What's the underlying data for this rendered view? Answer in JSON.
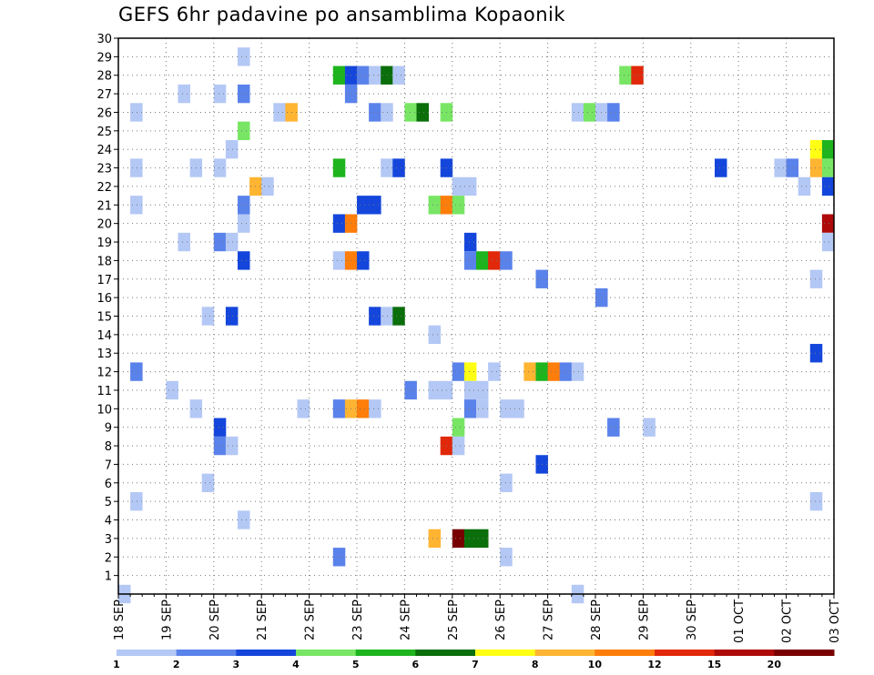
{
  "chart_data": {
    "type": "heatmap",
    "title": "GEFS 6hr padavine po ansamblima Kopaonik",
    "xlabel": "",
    "ylabel": "",
    "x_ticks": [
      "18 SEP",
      "19 SEP",
      "20 SEP",
      "21 SEP",
      "22 SEP",
      "23 SEP",
      "24 SEP",
      "25 SEP",
      "26 SEP",
      "27 SEP",
      "28 SEP",
      "29 SEP",
      "30 SEP",
      "01 OCT",
      "02 OCT",
      "03 OCT"
    ],
    "xlim_days": [
      0,
      15
    ],
    "steps_per_day": 4,
    "y_ticks": [
      1,
      2,
      3,
      4,
      5,
      6,
      7,
      8,
      9,
      10,
      11,
      12,
      13,
      14,
      15,
      16,
      17,
      18,
      19,
      20,
      21,
      22,
      23,
      24,
      25,
      26,
      27,
      28,
      29,
      30
    ],
    "ylim": [
      0,
      30
    ],
    "grid": true,
    "colorbar": {
      "labels": [
        "1",
        "2",
        "3",
        "4",
        "5",
        "6",
        "7",
        "8",
        "10",
        "12",
        "15",
        "20"
      ],
      "colors": [
        "#b4c8f5",
        "#5a82eb",
        "#1446dc",
        "#78e664",
        "#1eb41e",
        "#0a6e0a",
        "#ffff14",
        "#ffb432",
        "#ff7d0a",
        "#e1280a",
        "#af0a0a",
        "#780000"
      ]
    },
    "cells": [
      {
        "x": 0.0,
        "y": 0,
        "c": 0
      },
      {
        "x": 9.5,
        "y": 0,
        "c": 0
      },
      {
        "x": 0.25,
        "y": 21,
        "c": 0
      },
      {
        "x": 0.25,
        "y": 26,
        "c": 0
      },
      {
        "x": 0.25,
        "y": 23,
        "c": 0
      },
      {
        "x": 0.25,
        "y": 5,
        "c": 0
      },
      {
        "x": 0.25,
        "y": 12,
        "c": 1
      },
      {
        "x": 1.0,
        "y": 11,
        "c": 0
      },
      {
        "x": 1.25,
        "y": 27,
        "c": 0
      },
      {
        "x": 1.25,
        "y": 19,
        "c": 0
      },
      {
        "x": 1.5,
        "y": 23,
        "c": 0
      },
      {
        "x": 1.5,
        "y": 10,
        "c": 0
      },
      {
        "x": 1.75,
        "y": 15,
        "c": 0
      },
      {
        "x": 1.75,
        "y": 6,
        "c": 0
      },
      {
        "x": 2.0,
        "y": 27,
        "c": 0
      },
      {
        "x": 2.0,
        "y": 23,
        "c": 0
      },
      {
        "x": 2.0,
        "y": 19,
        "c": 1
      },
      {
        "x": 2.0,
        "y": 9,
        "c": 2
      },
      {
        "x": 2.0,
        "y": 8,
        "c": 1
      },
      {
        "x": 2.25,
        "y": 24,
        "c": 0
      },
      {
        "x": 2.25,
        "y": 19,
        "c": 0
      },
      {
        "x": 2.25,
        "y": 15,
        "c": 2
      },
      {
        "x": 2.25,
        "y": 8,
        "c": 0
      },
      {
        "x": 2.5,
        "y": 29,
        "c": 0
      },
      {
        "x": 2.5,
        "y": 27,
        "c": 1
      },
      {
        "x": 2.5,
        "y": 25,
        "c": 3
      },
      {
        "x": 2.5,
        "y": 21,
        "c": 1
      },
      {
        "x": 2.5,
        "y": 20,
        "c": 0
      },
      {
        "x": 2.5,
        "y": 18,
        "c": 2
      },
      {
        "x": 2.5,
        "y": 4,
        "c": 0
      },
      {
        "x": 2.75,
        "y": 22,
        "c": 7
      },
      {
        "x": 3.0,
        "y": 22,
        "c": 0
      },
      {
        "x": 3.25,
        "y": 26,
        "c": 0
      },
      {
        "x": 3.5,
        "y": 26,
        "c": 7
      },
      {
        "x": 3.75,
        "y": 10,
        "c": 0
      },
      {
        "x": 4.5,
        "y": 28,
        "c": 4
      },
      {
        "x": 4.5,
        "y": 23,
        "c": 4
      },
      {
        "x": 4.5,
        "y": 20,
        "c": 2
      },
      {
        "x": 4.5,
        "y": 18,
        "c": 0
      },
      {
        "x": 4.5,
        "y": 10,
        "c": 1
      },
      {
        "x": 4.5,
        "y": 2,
        "c": 1
      },
      {
        "x": 4.75,
        "y": 28,
        "c": 2
      },
      {
        "x": 4.75,
        "y": 27,
        "c": 1
      },
      {
        "x": 4.75,
        "y": 20,
        "c": 8
      },
      {
        "x": 4.75,
        "y": 18,
        "c": 8
      },
      {
        "x": 4.75,
        "y": 10,
        "c": 7
      },
      {
        "x": 5.0,
        "y": 28,
        "c": 1
      },
      {
        "x": 5.0,
        "y": 21,
        "c": 2
      },
      {
        "x": 5.0,
        "y": 18,
        "c": 2
      },
      {
        "x": 5.0,
        "y": 10,
        "c": 8
      },
      {
        "x": 5.25,
        "y": 28,
        "c": 0
      },
      {
        "x": 5.25,
        "y": 26,
        "c": 1
      },
      {
        "x": 5.25,
        "y": 21,
        "c": 2
      },
      {
        "x": 5.25,
        "y": 15,
        "c": 2
      },
      {
        "x": 5.25,
        "y": 10,
        "c": 0
      },
      {
        "x": 5.5,
        "y": 28,
        "c": 5
      },
      {
        "x": 5.5,
        "y": 26,
        "c": 0
      },
      {
        "x": 5.5,
        "y": 23,
        "c": 0
      },
      {
        "x": 5.5,
        "y": 15,
        "c": 0
      },
      {
        "x": 5.75,
        "y": 28,
        "c": 0
      },
      {
        "x": 5.75,
        "y": 23,
        "c": 2
      },
      {
        "x": 5.75,
        "y": 15,
        "c": 5
      },
      {
        "x": 6.0,
        "y": 26,
        "c": 3
      },
      {
        "x": 6.0,
        "y": 11,
        "c": 1
      },
      {
        "x": 6.25,
        "y": 26,
        "c": 5
      },
      {
        "x": 6.5,
        "y": 14,
        "c": 0
      },
      {
        "x": 6.5,
        "y": 11,
        "c": 0
      },
      {
        "x": 6.5,
        "y": 21,
        "c": 3
      },
      {
        "x": 6.5,
        "y": 3,
        "c": 7
      },
      {
        "x": 6.75,
        "y": 26,
        "c": 3
      },
      {
        "x": 6.75,
        "y": 23,
        "c": 2
      },
      {
        "x": 6.75,
        "y": 21,
        "c": 8
      },
      {
        "x": 6.75,
        "y": 11,
        "c": 0
      },
      {
        "x": 6.75,
        "y": 8,
        "c": 9
      },
      {
        "x": 7.0,
        "y": 22,
        "c": 0
      },
      {
        "x": 7.0,
        "y": 21,
        "c": 3
      },
      {
        "x": 7.0,
        "y": 12,
        "c": 1
      },
      {
        "x": 7.0,
        "y": 9,
        "c": 3
      },
      {
        "x": 7.0,
        "y": 8,
        "c": 0
      },
      {
        "x": 7.0,
        "y": 3,
        "c": 11
      },
      {
        "x": 7.25,
        "y": 22,
        "c": 0
      },
      {
        "x": 7.25,
        "y": 19,
        "c": 2
      },
      {
        "x": 7.25,
        "y": 18,
        "c": 1
      },
      {
        "x": 7.25,
        "y": 12,
        "c": 6
      },
      {
        "x": 7.25,
        "y": 11,
        "c": 0
      },
      {
        "x": 7.25,
        "y": 10,
        "c": 1
      },
      {
        "x": 7.25,
        "y": 3,
        "c": 5
      },
      {
        "x": 7.5,
        "y": 18,
        "c": 4
      },
      {
        "x": 7.5,
        "y": 11,
        "c": 0
      },
      {
        "x": 7.5,
        "y": 10,
        "c": 0
      },
      {
        "x": 7.5,
        "y": 3,
        "c": 5
      },
      {
        "x": 7.75,
        "y": 18,
        "c": 9
      },
      {
        "x": 7.75,
        "y": 12,
        "c": 0
      },
      {
        "x": 8.0,
        "y": 18,
        "c": 1
      },
      {
        "x": 8.0,
        "y": 10,
        "c": 0
      },
      {
        "x": 8.0,
        "y": 6,
        "c": 0
      },
      {
        "x": 8.0,
        "y": 2,
        "c": 0
      },
      {
        "x": 8.25,
        "y": 10,
        "c": 0
      },
      {
        "x": 8.5,
        "y": 12,
        "c": 7
      },
      {
        "x": 8.75,
        "y": 12,
        "c": 4
      },
      {
        "x": 8.75,
        "y": 17,
        "c": 1
      },
      {
        "x": 8.75,
        "y": 7,
        "c": 2
      },
      {
        "x": 9.0,
        "y": 12,
        "c": 8
      },
      {
        "x": 9.25,
        "y": 12,
        "c": 1
      },
      {
        "x": 9.5,
        "y": 26,
        "c": 0
      },
      {
        "x": 9.5,
        "y": 12,
        "c": 0
      },
      {
        "x": 9.75,
        "y": 26,
        "c": 3
      },
      {
        "x": 10.0,
        "y": 26,
        "c": 0
      },
      {
        "x": 10.0,
        "y": 16,
        "c": 1
      },
      {
        "x": 10.25,
        "y": 26,
        "c": 1
      },
      {
        "x": 10.25,
        "y": 9,
        "c": 1
      },
      {
        "x": 10.5,
        "y": 28,
        "c": 3
      },
      {
        "x": 10.75,
        "y": 28,
        "c": 9
      },
      {
        "x": 11.0,
        "y": 9,
        "c": 0
      },
      {
        "x": 12.5,
        "y": 23,
        "c": 2
      },
      {
        "x": 13.75,
        "y": 23,
        "c": 0
      },
      {
        "x": 14.0,
        "y": 23,
        "c": 1
      },
      {
        "x": 14.25,
        "y": 22,
        "c": 0
      },
      {
        "x": 14.5,
        "y": 24,
        "c": 6
      },
      {
        "x": 14.5,
        "y": 23,
        "c": 7
      },
      {
        "x": 14.5,
        "y": 17,
        "c": 0
      },
      {
        "x": 14.5,
        "y": 13,
        "c": 2
      },
      {
        "x": 14.5,
        "y": 5,
        "c": 0
      },
      {
        "x": 14.75,
        "y": 24,
        "c": 4
      },
      {
        "x": 14.75,
        "y": 23,
        "c": 3
      },
      {
        "x": 14.75,
        "y": 22,
        "c": 2
      },
      {
        "x": 14.75,
        "y": 20,
        "c": 10
      },
      {
        "x": 14.75,
        "y": 19,
        "c": 0
      }
    ]
  }
}
